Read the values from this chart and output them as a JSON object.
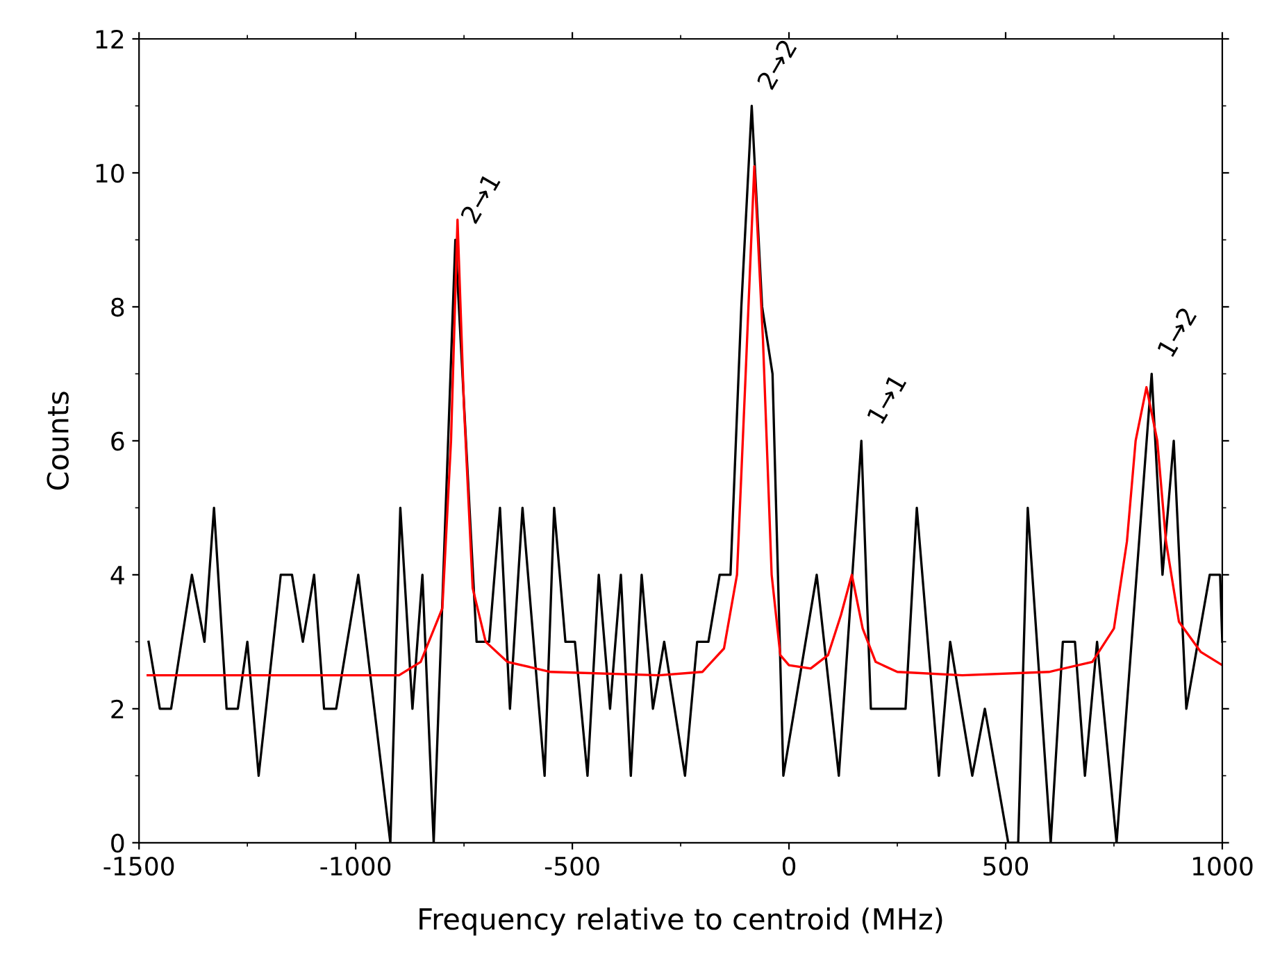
{
  "chart_data": {
    "type": "line",
    "xlabel": "Frequency relative to centroid (MHz)",
    "ylabel": "Counts",
    "xlim": [
      -1500,
      1000
    ],
    "xticks": [
      -1500,
      -1000,
      -500,
      0,
      500,
      1000
    ],
    "ylim": [
      0,
      12
    ],
    "yticks": [
      0,
      2,
      4,
      6,
      8,
      10,
      12
    ],
    "grid": false,
    "legend": false,
    "marker": "none",
    "line_style": "solid",
    "series": [
      {
        "color": "#000000",
        "x": [
          -1478,
          -1452,
          -1426,
          -1378,
          -1349,
          -1327,
          -1298,
          -1272,
          -1250,
          -1224,
          -1173,
          -1147,
          -1122,
          -1096,
          -1073,
          -1045,
          -994,
          -920,
          -897,
          -869,
          -846,
          -820,
          -770,
          -721,
          -692,
          -667,
          -644,
          -615,
          -564,
          -542,
          -516,
          -494,
          -465,
          -439,
          -413,
          -388,
          -365,
          -340,
          -314,
          -288,
          -240,
          -212,
          -186,
          -160,
          -135,
          -110,
          -86,
          -62,
          -38,
          -13,
          64,
          115,
          167,
          189,
          269,
          295,
          346,
          372,
          423,
          452,
          506,
          529,
          551,
          604,
          632,
          660,
          683,
          711,
          756,
          837,
          862,
          888,
          917,
          971,
          995,
          1000
        ],
        "values": [
          3,
          2,
          2,
          4,
          3,
          5,
          2,
          2,
          3,
          1,
          4,
          4,
          3,
          4,
          2,
          2,
          4,
          0,
          5,
          2,
          4,
          0,
          9,
          3,
          3,
          5,
          2,
          5,
          1,
          5,
          3,
          3,
          1,
          4,
          2,
          4,
          1,
          4,
          2,
          3,
          1,
          3,
          3,
          4,
          4,
          8,
          11,
          8,
          7,
          1,
          4,
          1,
          6,
          2,
          2,
          5,
          1,
          3,
          1,
          2,
          0,
          0,
          5,
          0,
          3,
          3,
          1,
          3,
          0,
          7,
          4,
          6,
          2,
          4,
          4,
          3
        ]
      },
      {
        "color": "#ff0000",
        "x": [
          -1480,
          -900,
          -850,
          -800,
          -780,
          -765,
          -750,
          -730,
          -700,
          -650,
          -550,
          -300,
          -200,
          -150,
          -120,
          -100,
          -80,
          -60,
          -40,
          -20,
          0,
          50,
          90,
          120,
          145,
          170,
          200,
          250,
          400,
          600,
          700,
          750,
          780,
          800,
          825,
          850,
          870,
          900,
          950,
          1000
        ],
        "values": [
          2.5,
          2.5,
          2.7,
          3.5,
          6,
          9.3,
          6.5,
          3.8,
          3,
          2.7,
          2.55,
          2.5,
          2.55,
          2.9,
          4,
          7,
          10.1,
          7.5,
          4,
          2.8,
          2.65,
          2.6,
          2.8,
          3.4,
          4,
          3.2,
          2.7,
          2.55,
          2.5,
          2.55,
          2.7,
          3.2,
          4.5,
          6,
          6.8,
          6,
          4.5,
          3.3,
          2.85,
          2.65
        ]
      }
    ],
    "annotations": [
      {
        "text": "2→1",
        "x": -770,
        "y": 9
      },
      {
        "text": "2→2",
        "x": -86,
        "y": 11
      },
      {
        "text": "1→1",
        "x": 167,
        "y": 6
      },
      {
        "text": "1→2",
        "x": 837,
        "y": 7
      }
    ]
  }
}
